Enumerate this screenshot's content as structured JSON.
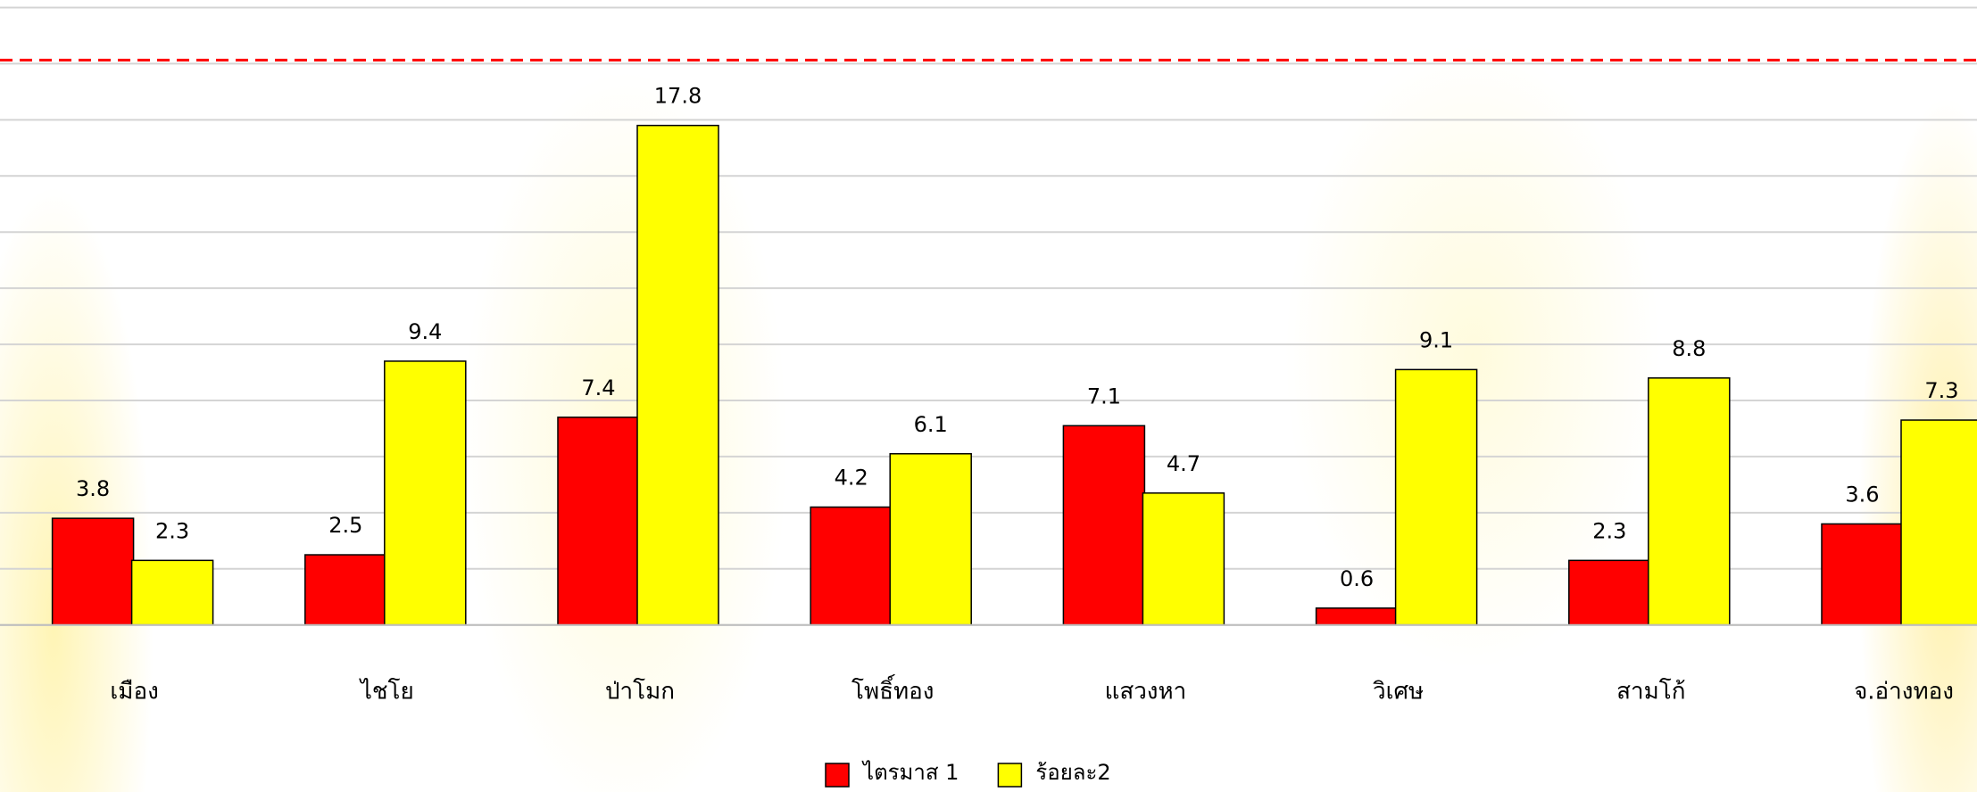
{
  "chart_data": {
    "type": "bar",
    "categories": [
      "เมือง",
      "ไชโย",
      "ป่าโมก",
      "โพธิ์ทอง",
      "แสวงหา",
      "วิเศษ",
      "สามโก้",
      "จ.อ่างทอง"
    ],
    "series": [
      {
        "name": "ไตรมาส 1",
        "color": "#ff0000",
        "values": [
          3.8,
          2.5,
          7.4,
          4.2,
          7.1,
          0.6,
          2.3,
          3.6
        ]
      },
      {
        "name": "ร้อยละ2",
        "color": "#ffff00",
        "values": [
          2.3,
          9.4,
          17.8,
          6.1,
          4.7,
          9.1,
          8.8,
          7.3
        ]
      }
    ],
    "ylim": [
      0,
      22
    ],
    "yticks": [
      0,
      2,
      4,
      6,
      8,
      10,
      12,
      14,
      16,
      18,
      20,
      22
    ],
    "grid": true,
    "reference_line": 20,
    "reference_color": "#ff0000",
    "legend": "bottom"
  }
}
